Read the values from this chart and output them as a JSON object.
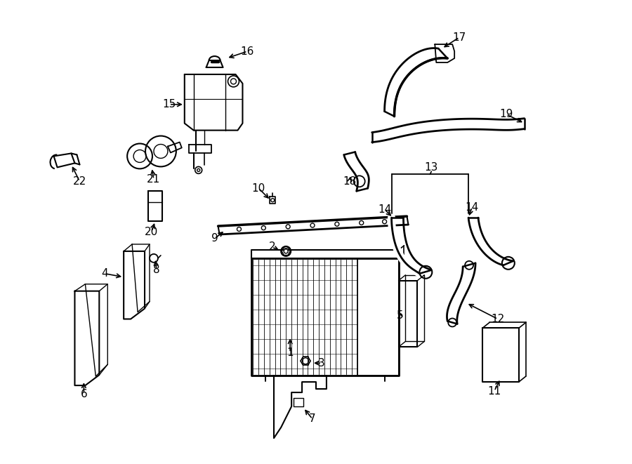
{
  "bg_color": "#ffffff",
  "line_color": "#000000",
  "fig_width": 9.0,
  "fig_height": 6.61,
  "dpi": 100
}
